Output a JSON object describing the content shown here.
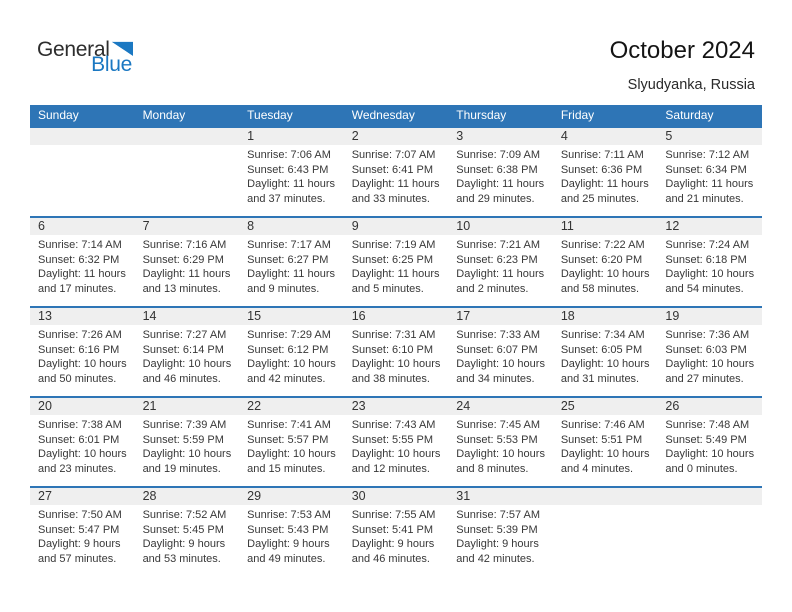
{
  "logo": {
    "text_dark": "General",
    "text_blue": "Blue",
    "mark": "triangle-flag-icon"
  },
  "title": "October 2024",
  "subtitle": "Slyudyanka, Russia",
  "colors": {
    "header_blue": "#2E75B6",
    "row_divider_blue": "#2E75B6",
    "day_band_gray": "#EFEFEF",
    "logo_blue": "#1B78C2"
  },
  "calendar": {
    "weekdays": [
      "Sunday",
      "Monday",
      "Tuesday",
      "Wednesday",
      "Thursday",
      "Friday",
      "Saturday"
    ],
    "weeks": [
      [
        null,
        null,
        {
          "day": "1",
          "sunrise": "Sunrise: 7:06 AM",
          "sunset": "Sunset: 6:43 PM",
          "daylight": "Daylight: 11 hours and 37 minutes."
        },
        {
          "day": "2",
          "sunrise": "Sunrise: 7:07 AM",
          "sunset": "Sunset: 6:41 PM",
          "daylight": "Daylight: 11 hours and 33 minutes."
        },
        {
          "day": "3",
          "sunrise": "Sunrise: 7:09 AM",
          "sunset": "Sunset: 6:38 PM",
          "daylight": "Daylight: 11 hours and 29 minutes."
        },
        {
          "day": "4",
          "sunrise": "Sunrise: 7:11 AM",
          "sunset": "Sunset: 6:36 PM",
          "daylight": "Daylight: 11 hours and 25 minutes."
        },
        {
          "day": "5",
          "sunrise": "Sunrise: 7:12 AM",
          "sunset": "Sunset: 6:34 PM",
          "daylight": "Daylight: 11 hours and 21 minutes."
        }
      ],
      [
        {
          "day": "6",
          "sunrise": "Sunrise: 7:14 AM",
          "sunset": "Sunset: 6:32 PM",
          "daylight": "Daylight: 11 hours and 17 minutes."
        },
        {
          "day": "7",
          "sunrise": "Sunrise: 7:16 AM",
          "sunset": "Sunset: 6:29 PM",
          "daylight": "Daylight: 11 hours and 13 minutes."
        },
        {
          "day": "8",
          "sunrise": "Sunrise: 7:17 AM",
          "sunset": "Sunset: 6:27 PM",
          "daylight": "Daylight: 11 hours and 9 minutes."
        },
        {
          "day": "9",
          "sunrise": "Sunrise: 7:19 AM",
          "sunset": "Sunset: 6:25 PM",
          "daylight": "Daylight: 11 hours and 5 minutes."
        },
        {
          "day": "10",
          "sunrise": "Sunrise: 7:21 AM",
          "sunset": "Sunset: 6:23 PM",
          "daylight": "Daylight: 11 hours and 2 minutes."
        },
        {
          "day": "11",
          "sunrise": "Sunrise: 7:22 AM",
          "sunset": "Sunset: 6:20 PM",
          "daylight": "Daylight: 10 hours and 58 minutes."
        },
        {
          "day": "12",
          "sunrise": "Sunrise: 7:24 AM",
          "sunset": "Sunset: 6:18 PM",
          "daylight": "Daylight: 10 hours and 54 minutes."
        }
      ],
      [
        {
          "day": "13",
          "sunrise": "Sunrise: 7:26 AM",
          "sunset": "Sunset: 6:16 PM",
          "daylight": "Daylight: 10 hours and 50 minutes."
        },
        {
          "day": "14",
          "sunrise": "Sunrise: 7:27 AM",
          "sunset": "Sunset: 6:14 PM",
          "daylight": "Daylight: 10 hours and 46 minutes."
        },
        {
          "day": "15",
          "sunrise": "Sunrise: 7:29 AM",
          "sunset": "Sunset: 6:12 PM",
          "daylight": "Daylight: 10 hours and 42 minutes."
        },
        {
          "day": "16",
          "sunrise": "Sunrise: 7:31 AM",
          "sunset": "Sunset: 6:10 PM",
          "daylight": "Daylight: 10 hours and 38 minutes."
        },
        {
          "day": "17",
          "sunrise": "Sunrise: 7:33 AM",
          "sunset": "Sunset: 6:07 PM",
          "daylight": "Daylight: 10 hours and 34 minutes."
        },
        {
          "day": "18",
          "sunrise": "Sunrise: 7:34 AM",
          "sunset": "Sunset: 6:05 PM",
          "daylight": "Daylight: 10 hours and 31 minutes."
        },
        {
          "day": "19",
          "sunrise": "Sunrise: 7:36 AM",
          "sunset": "Sunset: 6:03 PM",
          "daylight": "Daylight: 10 hours and 27 minutes."
        }
      ],
      [
        {
          "day": "20",
          "sunrise": "Sunrise: 7:38 AM",
          "sunset": "Sunset: 6:01 PM",
          "daylight": "Daylight: 10 hours and 23 minutes."
        },
        {
          "day": "21",
          "sunrise": "Sunrise: 7:39 AM",
          "sunset": "Sunset: 5:59 PM",
          "daylight": "Daylight: 10 hours and 19 minutes."
        },
        {
          "day": "22",
          "sunrise": "Sunrise: 7:41 AM",
          "sunset": "Sunset: 5:57 PM",
          "daylight": "Daylight: 10 hours and 15 minutes."
        },
        {
          "day": "23",
          "sunrise": "Sunrise: 7:43 AM",
          "sunset": "Sunset: 5:55 PM",
          "daylight": "Daylight: 10 hours and 12 minutes."
        },
        {
          "day": "24",
          "sunrise": "Sunrise: 7:45 AM",
          "sunset": "Sunset: 5:53 PM",
          "daylight": "Daylight: 10 hours and 8 minutes."
        },
        {
          "day": "25",
          "sunrise": "Sunrise: 7:46 AM",
          "sunset": "Sunset: 5:51 PM",
          "daylight": "Daylight: 10 hours and 4 minutes."
        },
        {
          "day": "26",
          "sunrise": "Sunrise: 7:48 AM",
          "sunset": "Sunset: 5:49 PM",
          "daylight": "Daylight: 10 hours and 0 minutes."
        }
      ],
      [
        {
          "day": "27",
          "sunrise": "Sunrise: 7:50 AM",
          "sunset": "Sunset: 5:47 PM",
          "daylight": "Daylight: 9 hours and 57 minutes."
        },
        {
          "day": "28",
          "sunrise": "Sunrise: 7:52 AM",
          "sunset": "Sunset: 5:45 PM",
          "daylight": "Daylight: 9 hours and 53 minutes."
        },
        {
          "day": "29",
          "sunrise": "Sunrise: 7:53 AM",
          "sunset": "Sunset: 5:43 PM",
          "daylight": "Daylight: 9 hours and 49 minutes."
        },
        {
          "day": "30",
          "sunrise": "Sunrise: 7:55 AM",
          "sunset": "Sunset: 5:41 PM",
          "daylight": "Daylight: 9 hours and 46 minutes."
        },
        {
          "day": "31",
          "sunrise": "Sunrise: 7:57 AM",
          "sunset": "Sunset: 5:39 PM",
          "daylight": "Daylight: 9 hours and 42 minutes."
        },
        null,
        null
      ]
    ]
  }
}
